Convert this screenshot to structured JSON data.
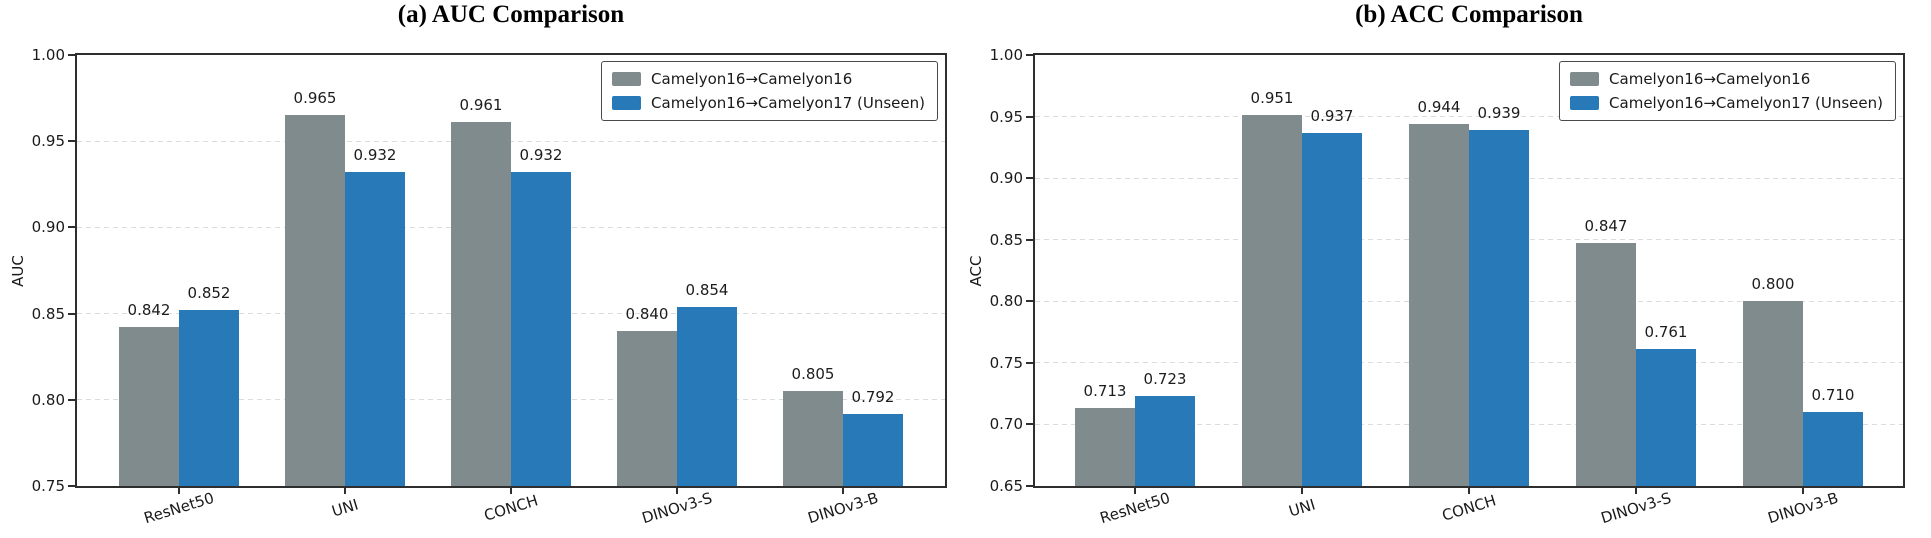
{
  "figure": {
    "background": "#ffffff",
    "text_color": "#1a1a1a",
    "grid_color": "#dcdcdc",
    "spine_color": "#2e2e2e"
  },
  "chart_data": [
    {
      "type": "bar",
      "title": "(a) AUC Comparison",
      "xlabel": "",
      "ylabel": "AUC",
      "ylim": [
        0.75,
        1.0
      ],
      "ytick_step": 0.05,
      "yticks": [
        "1.00",
        "0.95",
        "0.90",
        "0.85",
        "0.80",
        "0.75"
      ],
      "grid": "horizontal-dashed",
      "legend_position": "upper-right",
      "value_decimals": 3,
      "categories": [
        "ResNet50",
        "UNI",
        "CONCH",
        "DINOv3-S",
        "DINOv3-B"
      ],
      "series": [
        {
          "name": "Camelyon16→Camelyon16",
          "color": "#7f8b8c",
          "values": [
            0.842,
            0.965,
            0.961,
            0.84,
            0.805
          ]
        },
        {
          "name": "Camelyon16→Camelyon17 (Unseen)",
          "color": "#2879b8",
          "values": [
            0.852,
            0.932,
            0.932,
            0.854,
            0.792
          ]
        }
      ]
    },
    {
      "type": "bar",
      "title": "(b) ACC Comparison",
      "xlabel": "",
      "ylabel": "ACC",
      "ylim": [
        0.65,
        1.0
      ],
      "ytick_step": 0.05,
      "yticks": [
        "1.00",
        "0.95",
        "0.90",
        "0.85",
        "0.80",
        "0.75",
        "0.70",
        "0.65"
      ],
      "grid": "horizontal-dashed",
      "legend_position": "upper-right",
      "value_decimals": 3,
      "categories": [
        "ResNet50",
        "UNI",
        "CONCH",
        "DINOv3-S",
        "DINOv3-B"
      ],
      "series": [
        {
          "name": "Camelyon16→Camelyon16",
          "color": "#7f8b8c",
          "values": [
            0.713,
            0.951,
            0.944,
            0.847,
            0.8
          ]
        },
        {
          "name": "Camelyon16→Camelyon17 (Unseen)",
          "color": "#2879b8",
          "values": [
            0.723,
            0.937,
            0.939,
            0.761,
            0.71
          ]
        }
      ]
    }
  ]
}
